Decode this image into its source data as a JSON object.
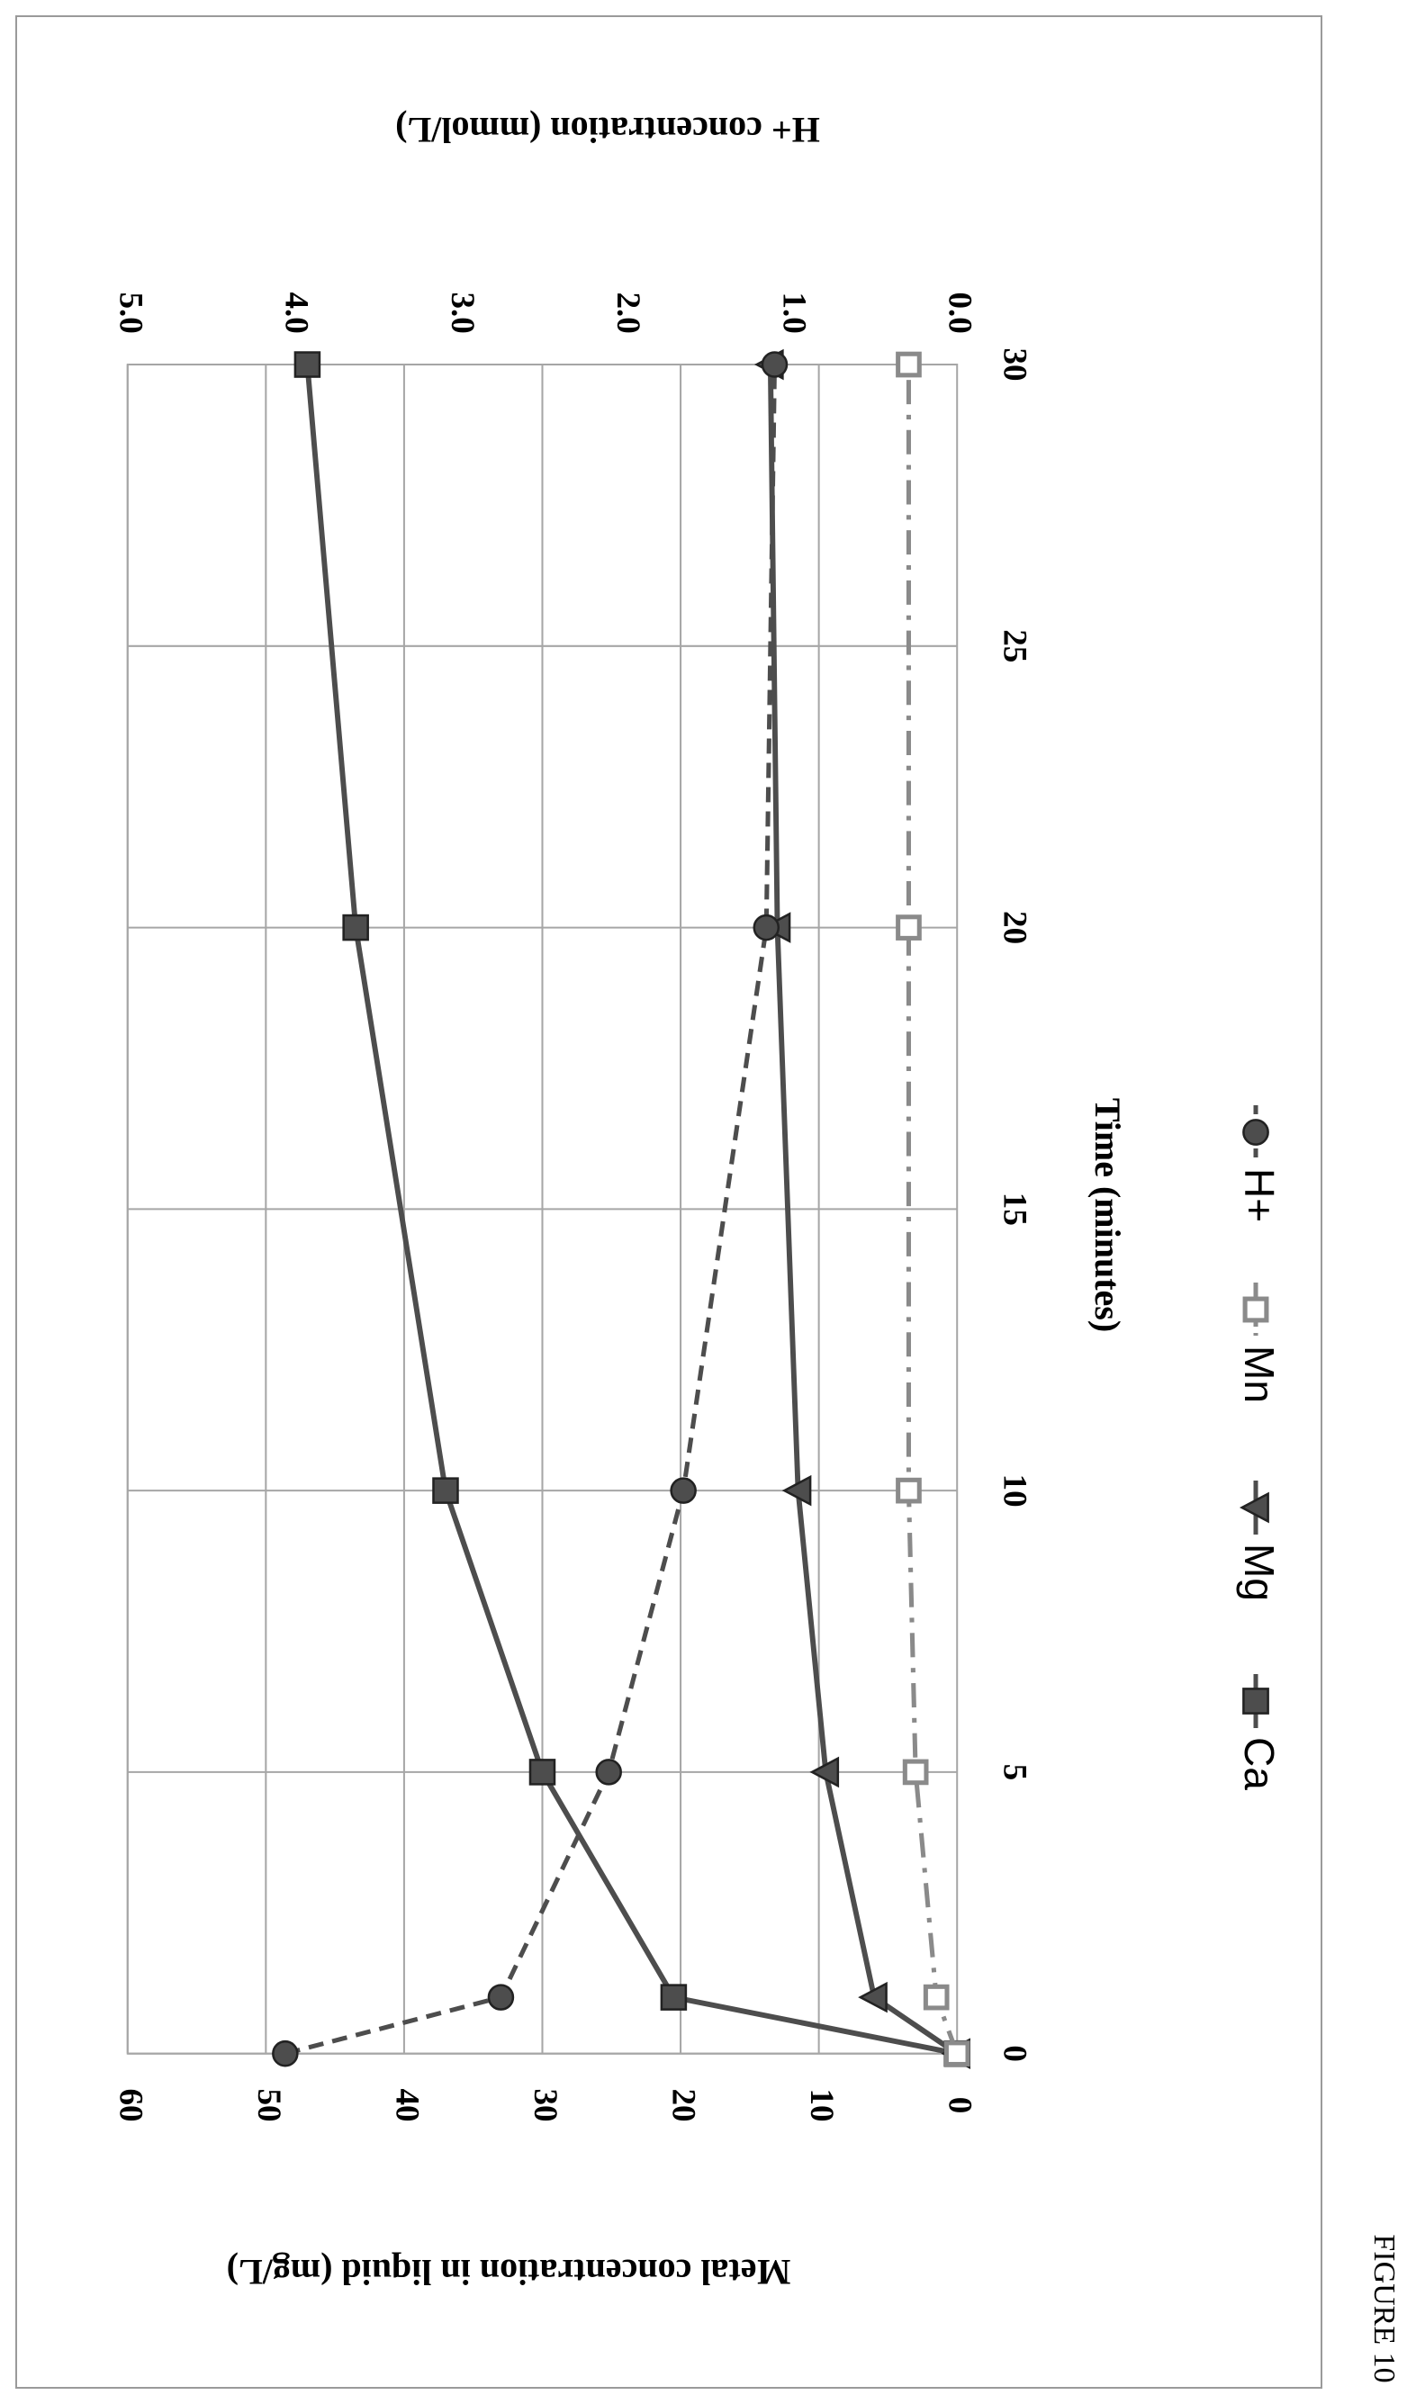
{
  "figure_caption": "FIGURE 10",
  "chart_data": {
    "type": "line",
    "xlabel": "Time (minutes)",
    "ylabel": "Metal concentration in liquid (mg/L)",
    "y2label": "H+ concentration (mmol/L)",
    "xlim": [
      0,
      30
    ],
    "ylim": [
      0,
      60
    ],
    "y2lim": [
      0,
      5
    ],
    "x_ticks": [
      0,
      5,
      10,
      15,
      20,
      25,
      30
    ],
    "y_ticks": [
      0,
      10,
      20,
      30,
      40,
      50,
      60
    ],
    "y2_ticks": [
      "0.0",
      "1.0",
      "2.0",
      "3.0",
      "4.0",
      "5.0"
    ],
    "grid": true,
    "legend_position": "bottom",
    "x": [
      0,
      1,
      5,
      10,
      20,
      30
    ],
    "series": [
      {
        "name": "Ca",
        "axis": "left",
        "marker": "square",
        "line": "solid",
        "color": "#4d4d4d",
        "values": [
          0,
          20.5,
          30,
          37,
          43.5,
          47
        ]
      },
      {
        "name": "Mg",
        "axis": "left",
        "marker": "triangle",
        "line": "solid",
        "color": "#4d4d4d",
        "values": [
          0,
          6,
          9.5,
          11.5,
          13,
          13.5
        ]
      },
      {
        "name": "Mn",
        "axis": "left",
        "marker": "open-square",
        "line": "dashdot",
        "color": "#8a8a8a",
        "values": [
          0,
          1.5,
          3,
          3.5,
          3.5,
          3.5
        ]
      },
      {
        "name": "H+",
        "axis": "right",
        "marker": "circle",
        "line": "dashed",
        "color": "#4d4d4d",
        "values": [
          4.05,
          2.75,
          2.1,
          1.65,
          1.15,
          1.1
        ]
      }
    ]
  }
}
